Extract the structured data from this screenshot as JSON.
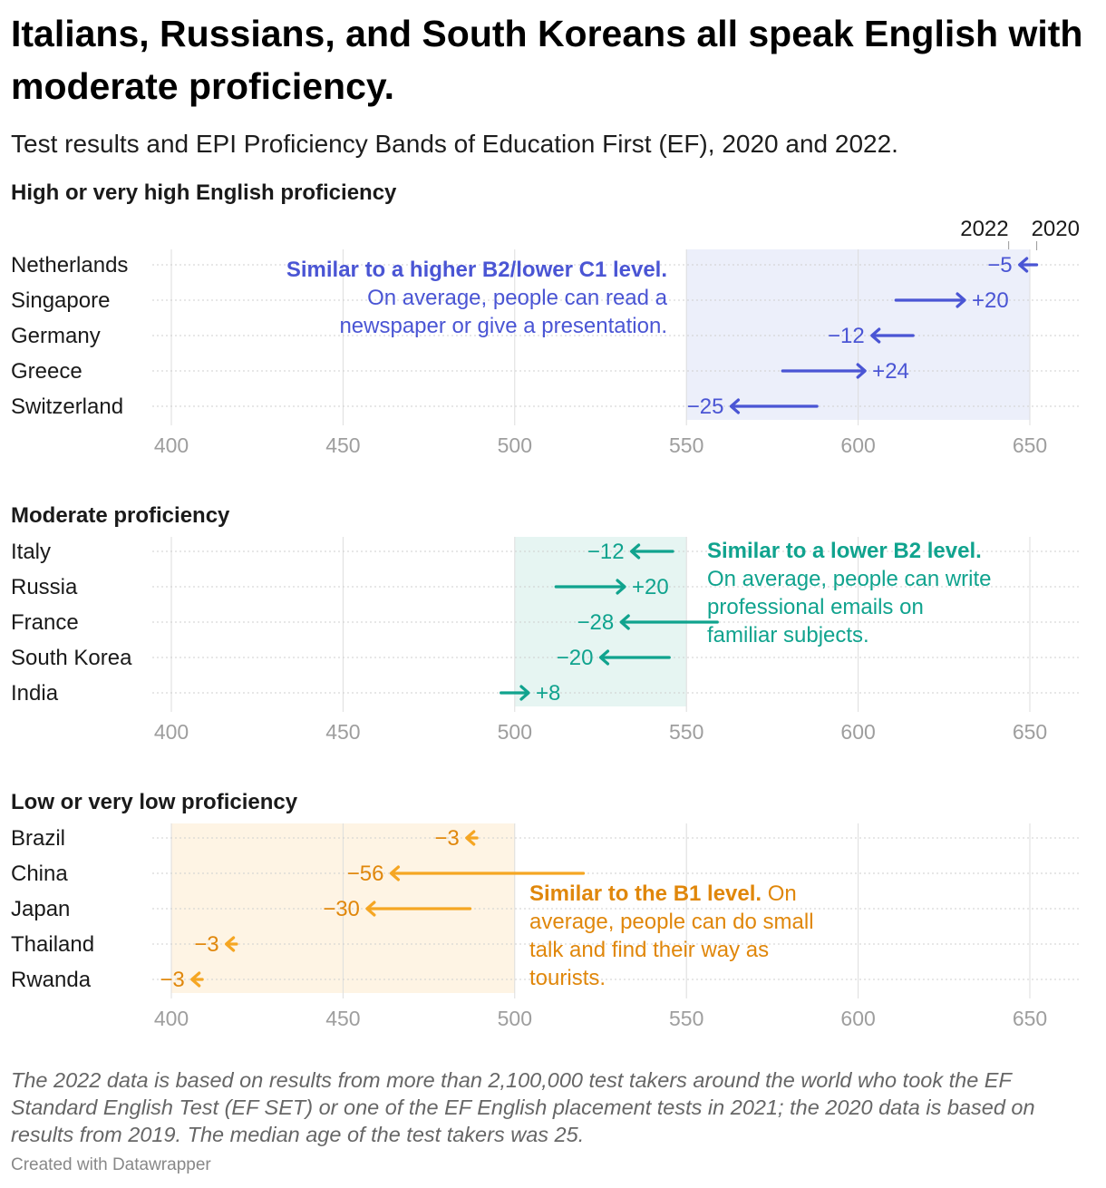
{
  "title": "Italians, Russians, and South Koreans all speak English with moderate proficiency.",
  "subtitle": "Test results and EPI Proficiency Bands of Education First (EF), 2020 and 2022.",
  "note": "The 2022 data is based on results from more than 2,100,000 test takers around the world who took the EF Standard English Test (EF SET) or one of the EF English placement tests in 2021; the 2020 data is based on results from 2019. The median age of the test takers was 25.",
  "credit": "Created with Datawrapper",
  "legend": {
    "label_2022": "2022",
    "label_2020": "2020"
  },
  "colors": {
    "high": "#4a55d4",
    "moderate": "#10a38e",
    "low": "#f5a623",
    "low_text": "#e0870b"
  },
  "chart_data": [
    {
      "type": "arrow",
      "title": "High or very high English proficiency",
      "band": [
        550,
        650
      ],
      "xlim": [
        400,
        650
      ],
      "ticks": [
        400,
        450,
        500,
        550,
        600,
        650
      ],
      "countries": [
        {
          "name": "Netherlands",
          "v2020": 652,
          "v2022": 647,
          "label": "−5"
        },
        {
          "name": "Singapore",
          "v2020": 611,
          "v2022": 631,
          "label": "+20"
        },
        {
          "name": "Germany",
          "v2020": 616,
          "v2022": 604,
          "label": "−12"
        },
        {
          "name": "Greece",
          "v2020": 578,
          "v2022": 602,
          "label": "+24"
        },
        {
          "name": "Switzerland",
          "v2020": 588,
          "v2022": 563,
          "label": "−25"
        }
      ],
      "annotation": {
        "bold": "Similar to a higher B2/lower C1 level.",
        "text": "On average, people can read a newspaper or give a presentation."
      }
    },
    {
      "type": "arrow",
      "title": "Moderate proficiency",
      "band": [
        500,
        550
      ],
      "xlim": [
        400,
        650
      ],
      "ticks": [
        400,
        450,
        500,
        550,
        600,
        650
      ],
      "countries": [
        {
          "name": "Italy",
          "v2020": 546,
          "v2022": 534,
          "label": "−12"
        },
        {
          "name": "Russia",
          "v2020": 512,
          "v2022": 532,
          "label": "+20"
        },
        {
          "name": "France",
          "v2020": 559,
          "v2022": 531,
          "label": "−28"
        },
        {
          "name": "South Korea",
          "v2020": 545,
          "v2022": 525,
          "label": "−20"
        },
        {
          "name": "India",
          "v2020": 496,
          "v2022": 504,
          "label": "+8"
        }
      ],
      "annotation": {
        "bold": "Similar to a lower B2 level.",
        "text": "On average, people can write professional emails on familiar subjects."
      }
    },
    {
      "type": "arrow",
      "title": "Low or very low proficiency",
      "band": [
        400,
        500
      ],
      "xlim": [
        400,
        650
      ],
      "ticks": [
        400,
        450,
        500,
        550,
        600,
        650
      ],
      "countries": [
        {
          "name": "Brazil",
          "v2020": 489,
          "v2022": 486,
          "label": "−3"
        },
        {
          "name": "China",
          "v2020": 520,
          "v2022": 464,
          "label": "−56"
        },
        {
          "name": "Japan",
          "v2020": 487,
          "v2022": 457,
          "label": "−30"
        },
        {
          "name": "Thailand",
          "v2020": 419,
          "v2022": 416,
          "label": "−3"
        },
        {
          "name": "Rwanda",
          "v2020": 409,
          "v2022": 406,
          "label": "−3"
        }
      ],
      "annotation": {
        "bold": "Similar to the B1 level.",
        "text": "On average, people can do small talk and find their way as tourists."
      }
    }
  ]
}
